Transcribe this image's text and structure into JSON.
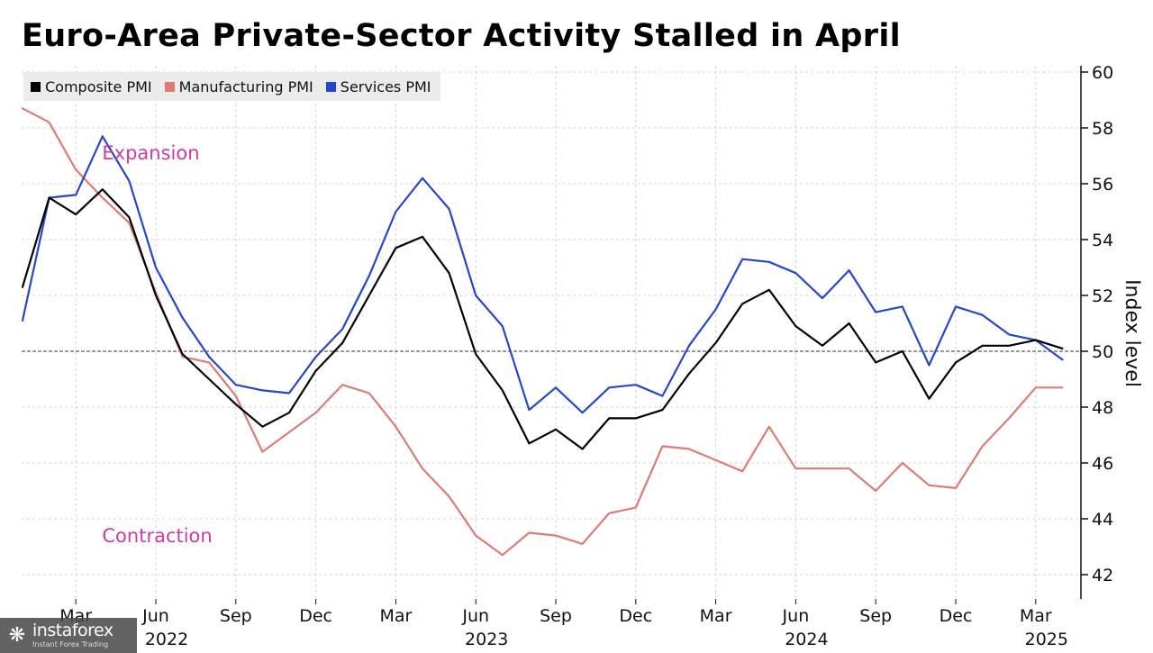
{
  "chart_data": {
    "type": "line",
    "title": "Euro-Area Private-Sector Activity Stalled in April",
    "ylabel": "Index level",
    "ylim": [
      41.5,
      60.3
    ],
    "yticks": [
      42,
      44,
      46,
      48,
      50,
      52,
      54,
      56,
      58,
      60
    ],
    "reference_line": 50,
    "grid": true,
    "legend_position": "top-left",
    "x": [
      "2022-01",
      "2022-02",
      "2022-03",
      "2022-04",
      "2022-05",
      "2022-06",
      "2022-07",
      "2022-08",
      "2022-09",
      "2022-10",
      "2022-11",
      "2022-12",
      "2023-01",
      "2023-02",
      "2023-03",
      "2023-04",
      "2023-05",
      "2023-06",
      "2023-07",
      "2023-08",
      "2023-09",
      "2023-10",
      "2023-11",
      "2023-12",
      "2024-01",
      "2024-02",
      "2024-03",
      "2024-04",
      "2024-05",
      "2024-06",
      "2024-07",
      "2024-08",
      "2024-09",
      "2024-10",
      "2024-11",
      "2024-12",
      "2025-01",
      "2025-02",
      "2025-03",
      "2025-04"
    ],
    "x_tick_labels": [
      {
        "date": "2022-03",
        "label": "Mar",
        "year": ""
      },
      {
        "date": "2022-06",
        "label": "Jun",
        "year": "2022"
      },
      {
        "date": "2022-09",
        "label": "Sep",
        "year": ""
      },
      {
        "date": "2022-12",
        "label": "Dec",
        "year": ""
      },
      {
        "date": "2023-03",
        "label": "Mar",
        "year": ""
      },
      {
        "date": "2023-06",
        "label": "Jun",
        "year": "2023"
      },
      {
        "date": "2023-09",
        "label": "Sep",
        "year": ""
      },
      {
        "date": "2023-12",
        "label": "Dec",
        "year": ""
      },
      {
        "date": "2024-03",
        "label": "Mar",
        "year": ""
      },
      {
        "date": "2024-06",
        "label": "Jun",
        "year": "2024"
      },
      {
        "date": "2024-09",
        "label": "Sep",
        "year": ""
      },
      {
        "date": "2024-12",
        "label": "Dec",
        "year": ""
      },
      {
        "date": "2025-03",
        "label": "Mar",
        "year": "2025"
      }
    ],
    "series": [
      {
        "name": "Composite PMI",
        "color": "#000000",
        "values": [
          52.3,
          55.5,
          54.9,
          55.8,
          54.8,
          52.0,
          49.9,
          49.0,
          48.1,
          47.3,
          47.8,
          49.3,
          50.3,
          52.0,
          53.7,
          54.1,
          52.8,
          49.9,
          48.6,
          46.7,
          47.2,
          46.5,
          47.6,
          47.6,
          47.9,
          49.2,
          50.3,
          51.7,
          52.2,
          50.9,
          50.2,
          51.0,
          49.6,
          50.0,
          48.3,
          49.6,
          50.2,
          50.2,
          50.4,
          50.1
        ]
      },
      {
        "name": "Manufacturing PMI",
        "color": "#e07b73",
        "values": [
          58.7,
          58.2,
          56.5,
          55.5,
          54.6,
          52.1,
          49.8,
          49.6,
          48.4,
          46.4,
          47.1,
          47.8,
          48.8,
          48.5,
          47.3,
          45.8,
          44.8,
          43.4,
          42.7,
          43.5,
          43.4,
          43.1,
          44.2,
          44.4,
          46.6,
          46.5,
          46.1,
          45.7,
          47.3,
          45.8,
          45.8,
          45.8,
          45.0,
          46.0,
          45.2,
          45.1,
          46.6,
          47.6,
          48.7,
          48.7
        ]
      },
      {
        "name": "Services PMI",
        "color": "#2448c7",
        "values": [
          51.1,
          55.5,
          55.6,
          57.7,
          56.1,
          53.0,
          51.2,
          49.8,
          48.8,
          48.6,
          48.5,
          49.8,
          50.8,
          52.7,
          55.0,
          56.2,
          55.1,
          52.0,
          50.9,
          47.9,
          48.7,
          47.8,
          48.7,
          48.8,
          48.4,
          50.2,
          51.5,
          53.3,
          53.2,
          52.8,
          51.9,
          52.9,
          51.4,
          51.6,
          49.5,
          51.6,
          51.3,
          50.6,
          50.4,
          49.7
        ]
      }
    ],
    "annotations": [
      {
        "text": "Expansion",
        "x": "2022-05",
        "y": 57.1
      },
      {
        "text": "Contraction",
        "x": "2022-05",
        "y": 43.4
      }
    ]
  },
  "colors": {
    "annotation": "#cc3aa5",
    "grid": "#d4d4d4"
  },
  "watermark": {
    "brand": "instaforex",
    "tagline": "Instant Forex Trading",
    "icon": "instaforex-logo-icon"
  }
}
